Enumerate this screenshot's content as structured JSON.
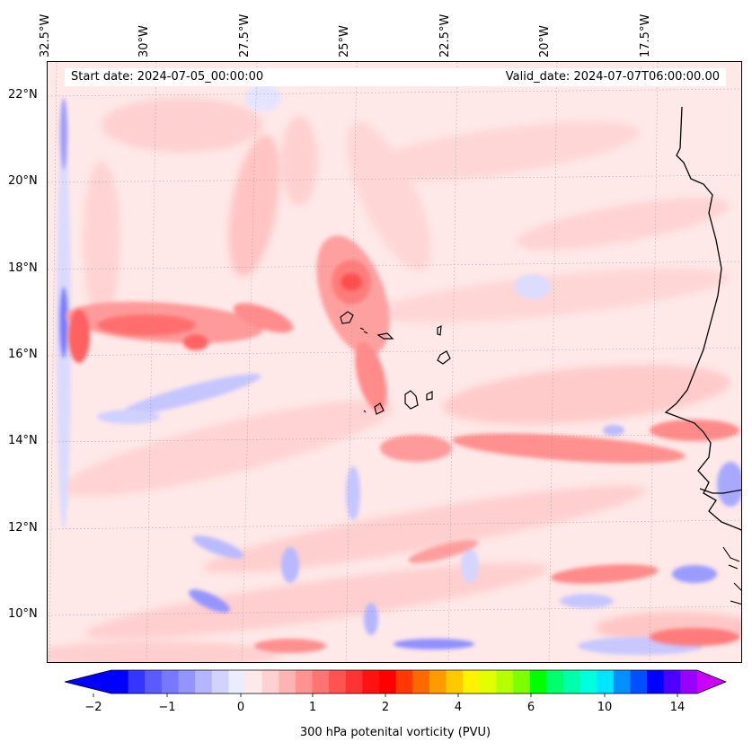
{
  "header": {
    "start_date": "Start date: 2024-07-05_00:00:00",
    "valid_date": "Valid_date: 2024-07-07T06:00:00.00"
  },
  "map": {
    "longitude_labels": [
      "32.5°W",
      "30°W",
      "27.5°W",
      "25°W",
      "22.5°W",
      "20°W",
      "17.5°W"
    ],
    "latitude_labels": [
      "22°N",
      "20°N",
      "18°N",
      "16°N",
      "14°N",
      "12°N",
      "10°N"
    ],
    "field": "300 hPa potential vorticity",
    "background_color": "#ffe8e8",
    "coastline_color": "#000000",
    "features": [
      {
        "name": "pv-max-cape-verde-north",
        "level": 2.0
      },
      {
        "name": "pv-band-west",
        "level": 1.5
      },
      {
        "name": "pv-band-east-coast",
        "level": 1.5
      },
      {
        "name": "pv-min-west-edge",
        "level": -1.0
      }
    ]
  },
  "colorbar": {
    "title": "300 hPa potenital vorticity (PVU)",
    "tick_labels": [
      "−2",
      "−1",
      "0",
      "1",
      "2",
      "4",
      "6",
      "10",
      "14"
    ],
    "colors": [
      "#0000ff",
      "#3535ff",
      "#5a5aff",
      "#7777ff",
      "#9494ff",
      "#b4b4ff",
      "#d2d2ff",
      "#ececff",
      "#ffe8e8",
      "#ffd0d0",
      "#ffb3b3",
      "#ff9393",
      "#ff7373",
      "#ff5353",
      "#ff3333",
      "#ff1212",
      "#ff0000",
      "#ff3900",
      "#ff6900",
      "#ff9a00",
      "#ffc900",
      "#fff200",
      "#e1ff00",
      "#b4ff00",
      "#7cff00",
      "#00ff00",
      "#00ff6a",
      "#00ffaa",
      "#00ffdc",
      "#00e5ff",
      "#0091ff",
      "#0050ff",
      "#0000ff",
      "#4c00ff",
      "#9800ff"
    ],
    "extend_low_color": "#0000ff",
    "extend_high_color": "#cc00ff"
  }
}
